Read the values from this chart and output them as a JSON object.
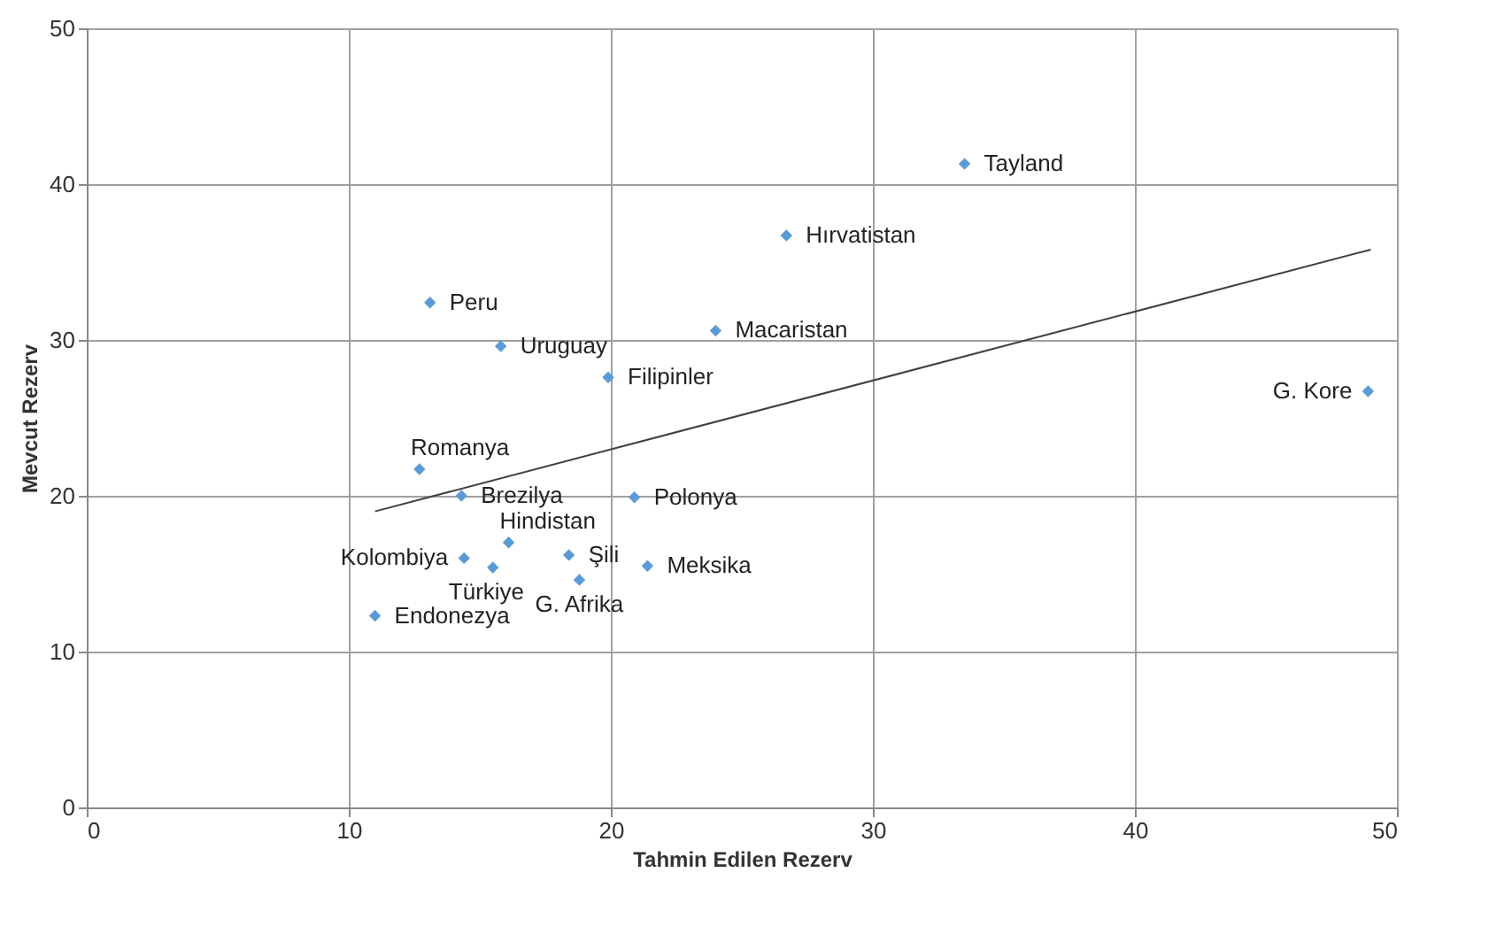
{
  "chart_data": {
    "type": "scatter",
    "xlabel": "Tahmin Edilen Rezerv",
    "ylabel": "Mevcut Rezerv",
    "xlim": [
      0,
      50
    ],
    "ylim": [
      0,
      50
    ],
    "xticks": [
      0,
      10,
      20,
      30,
      40,
      50
    ],
    "yticks": [
      0,
      10,
      20,
      30,
      40,
      50
    ],
    "grid": true,
    "series": [
      {
        "color": "#5b9bd5",
        "marker": "diamond",
        "x": [
          33.5,
          26.7,
          13.1,
          24.0,
          15.8,
          19.9,
          48.9,
          12.7,
          14.3,
          20.9,
          16.1,
          14.4,
          15.5,
          18.4,
          21.4,
          18.8,
          11.0
        ],
        "values": [
          41.3,
          36.7,
          32.4,
          30.6,
          29.6,
          27.6,
          26.7,
          21.7,
          20.0,
          19.9,
          17.0,
          16.0,
          15.4,
          16.2,
          15.5,
          14.6,
          12.3
        ]
      },
      {
        "type": "line",
        "marker": "none",
        "color": "#404040",
        "x": [
          11.0,
          49.0
        ],
        "values": [
          19.0,
          35.8
        ]
      }
    ],
    "annotations": [
      {
        "text": "Tayland",
        "x": 33.5,
        "y": 41.3
      },
      {
        "text": "Hırvatistan",
        "x": 26.7,
        "y": 36.7
      },
      {
        "text": "Peru",
        "x": 13.1,
        "y": 32.4
      },
      {
        "text": "Macaristan",
        "x": 24.0,
        "y": 30.6
      },
      {
        "text": "Uruguay",
        "x": 15.8,
        "y": 29.6
      },
      {
        "text": "Filipinler",
        "x": 19.9,
        "y": 27.6
      },
      {
        "text": "G. Kore",
        "x": 48.9,
        "y": 26.7
      },
      {
        "text": "Romanya",
        "x": 12.7,
        "y": 21.7
      },
      {
        "text": "Brezilya",
        "x": 14.3,
        "y": 20.0
      },
      {
        "text": "Polonya",
        "x": 20.9,
        "y": 19.9
      },
      {
        "text": "Hindistan",
        "x": 16.1,
        "y": 17.0
      },
      {
        "text": "Kolombiya",
        "x": 14.4,
        "y": 16.0
      },
      {
        "text": "Türkiye",
        "x": 15.5,
        "y": 15.4
      },
      {
        "text": "Şili",
        "x": 18.4,
        "y": 16.2
      },
      {
        "text": "Meksika",
        "x": 21.4,
        "y": 15.5
      },
      {
        "text": "G. Afrika",
        "x": 18.8,
        "y": 14.6
      },
      {
        "text": "Endonezya",
        "x": 11.0,
        "y": 12.3
      }
    ]
  }
}
